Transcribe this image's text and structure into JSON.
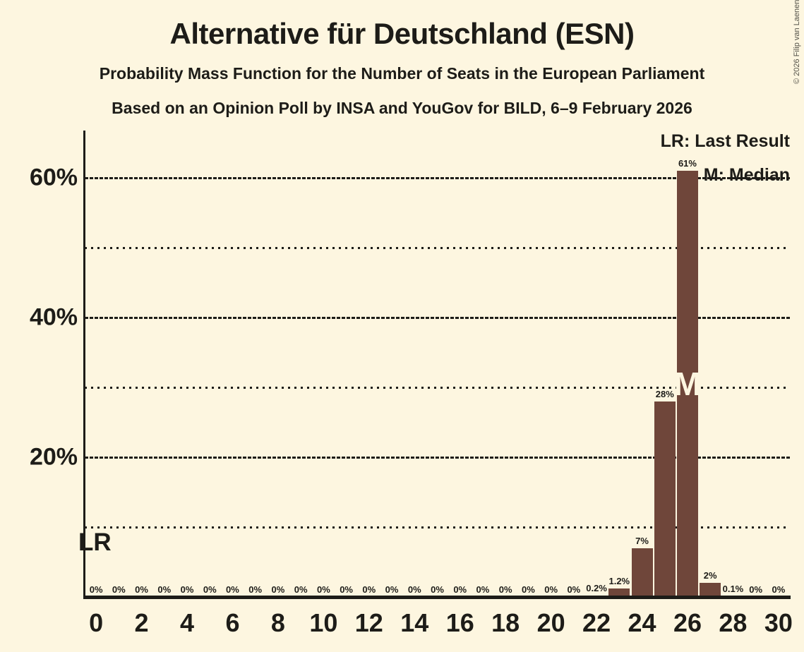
{
  "title": "Alternative für Deutschland (ESN)",
  "subtitle1": "Probability Mass Function for the Number of Seats in the European Parliament",
  "subtitle2": "Based on an Opinion Poll by INSA and YouGov for BILD, 6–9 February 2026",
  "copyright": "© 2026 Filip van Laenen",
  "legend": {
    "lr": "LR: Last Result",
    "m": "M: Median"
  },
  "lr_label": "LR",
  "median_label": "M",
  "colors": {
    "background": "#fdf6e0",
    "bar": "#6f463a",
    "text": "#1d1c18",
    "median_letter": "#fdf6e0"
  },
  "chart_data": {
    "type": "bar",
    "title": "Alternative für Deutschland (ESN)",
    "x": [
      0,
      1,
      2,
      3,
      4,
      5,
      6,
      7,
      8,
      9,
      10,
      11,
      12,
      13,
      14,
      15,
      16,
      17,
      18,
      19,
      20,
      21,
      22,
      23,
      24,
      25,
      26,
      27,
      28,
      29,
      30
    ],
    "values": [
      0,
      0,
      0,
      0,
      0,
      0,
      0,
      0,
      0,
      0,
      0,
      0,
      0,
      0,
      0,
      0,
      0,
      0,
      0,
      0,
      0,
      0,
      0.2,
      1.2,
      7,
      28,
      61,
      2,
      0.1,
      0,
      0
    ],
    "bar_labels": [
      "0%",
      "0%",
      "0%",
      "0%",
      "0%",
      "0%",
      "0%",
      "0%",
      "0%",
      "0%",
      "0%",
      "0%",
      "0%",
      "0%",
      "0%",
      "0%",
      "0%",
      "0%",
      "0%",
      "0%",
      "0%",
      "0%",
      "0.2%",
      "1.2%",
      "7%",
      "28%",
      "61%",
      "2%",
      "0.1%",
      "0%",
      "0%"
    ],
    "x_tick_labels": [
      "0",
      "2",
      "4",
      "6",
      "8",
      "10",
      "12",
      "14",
      "16",
      "18",
      "20",
      "22",
      "24",
      "26",
      "28",
      "30"
    ],
    "y_major_ticks": [
      {
        "value": 20,
        "label": "20%"
      },
      {
        "value": 40,
        "label": "40%"
      },
      {
        "value": 60,
        "label": "60%"
      }
    ],
    "y_minor_ticks": [
      10,
      30,
      50
    ],
    "ylim": [
      0,
      66.8
    ],
    "grid": "horizontal-dashed-major-dotted-minor",
    "legend_position": "top-right",
    "median_x": 26,
    "last_result_x": 0
  }
}
